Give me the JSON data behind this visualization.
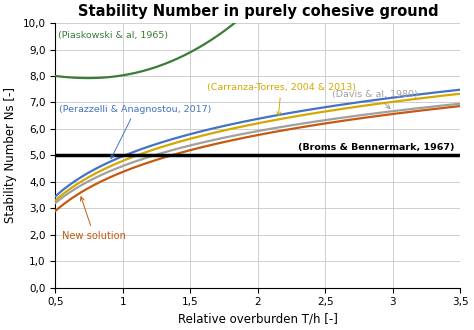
{
  "title": "Stability Number in purely cohesive ground",
  "xlabel": "Relative overburden T/h [-]",
  "ylabel": "Stability Number Ns [-]",
  "xlim": [
    0.5,
    3.5
  ],
  "ylim": [
    0.0,
    10.0
  ],
  "xticks": [
    0.5,
    1.0,
    1.5,
    2.0,
    2.5,
    3.0,
    3.5
  ],
  "yticks": [
    0.0,
    1.0,
    2.0,
    3.0,
    4.0,
    5.0,
    6.0,
    7.0,
    8.0,
    9.0,
    10.0
  ],
  "xtick_labels": [
    "0,5",
    "1",
    "1,5",
    "2",
    "2,5",
    "3",
    "3,5"
  ],
  "ytick_labels": [
    "0,0",
    "1,0",
    "2,0",
    "3,0",
    "4,0",
    "5,0",
    "6,0",
    "7,0",
    "8,0",
    "9,0",
    "10,0"
  ],
  "broms_y": 5.0,
  "broms_color": "#000000",
  "broms_label": "(Broms & Bennermark, 1967)",
  "broms_lw": 2.5,
  "piaskowski_color": "#3a7d34",
  "piaskowski_label": "(Piaskowski & al, 1965)",
  "carranza_color": "#d4a800",
  "carranza_label": "(Carranza-Torres, 2004 & 2013)",
  "perazzelli_color": "#4472c4",
  "perazzelli_label": "(Perazzelli & Anagnostou, 2017)",
  "davis_color": "#a0a0a0",
  "davis_label": "(Davis & al, 1980)",
  "new_solution_color": "#c55a11",
  "new_solution_label": "New solution",
  "background_color": "#ffffff",
  "grid_color": "#c8c8c8",
  "curve_lw": 1.6,
  "title_fontsize": 10.5,
  "label_fontsize": 8.5,
  "tick_fontsize": 7.5,
  "annot_fontsize": 6.8
}
